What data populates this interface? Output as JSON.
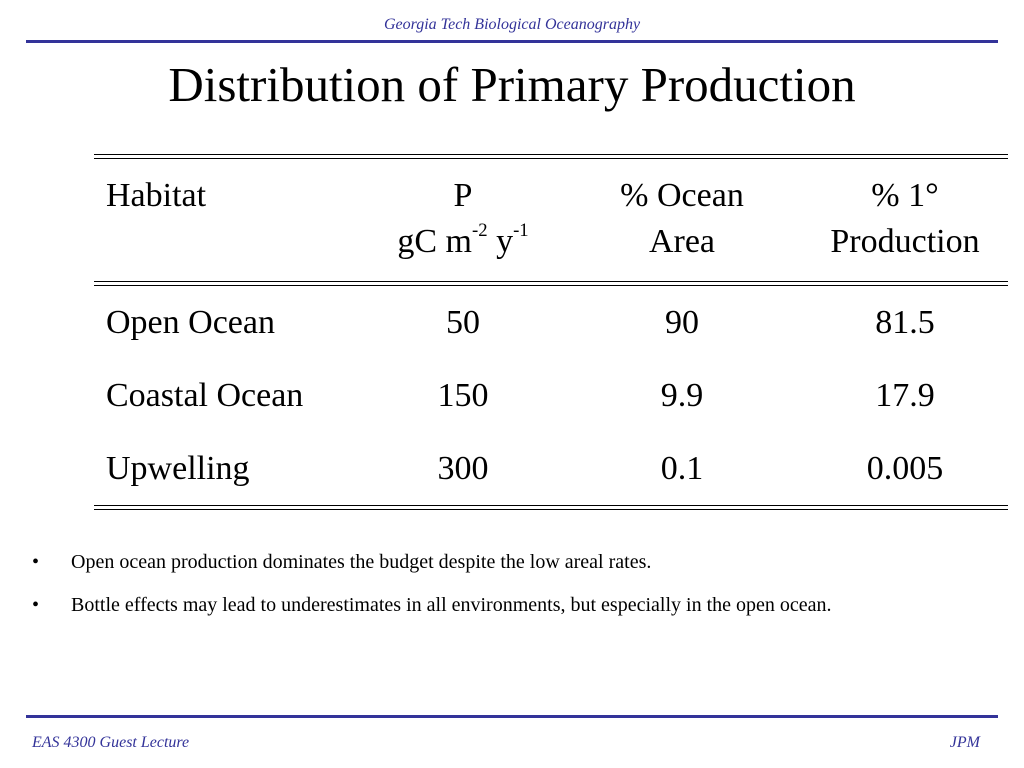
{
  "header": {
    "text": "Georgia Tech Biological Oceanography"
  },
  "slide": {
    "title": "Distribution of Primary Production"
  },
  "table": {
    "headers": {
      "habitat": "Habitat",
      "p_line1": "P",
      "p_line2_prefix": "gC m",
      "p_exp1": "-2",
      "p_mid": " y",
      "p_exp2": "-1",
      "area_line1": "% Ocean",
      "area_line2": "Area",
      "prod_line1": "% 1°",
      "prod_line2": "Production"
    },
    "rows": [
      {
        "habitat": "Open Ocean",
        "p": "50",
        "area": "90",
        "prod": "81.5"
      },
      {
        "habitat": "Coastal Ocean",
        "p": "150",
        "area": "9.9",
        "prod": "17.9"
      },
      {
        "habitat": "Upwelling",
        "p": "300",
        "area": "0.1",
        "prod": "0.005"
      }
    ]
  },
  "bullets": [
    {
      "mark": "•",
      "text": "Open ocean production dominates the budget despite the low areal rates."
    },
    {
      "mark": "•",
      "text": "Bottle effects may lead to underestimates in all environments, but especially in the open ocean."
    }
  ],
  "footer": {
    "left": "EAS 4300 Guest Lecture",
    "right": "JPM"
  },
  "colors": {
    "accent": "#333399",
    "text": "#000000",
    "background": "#ffffff"
  }
}
